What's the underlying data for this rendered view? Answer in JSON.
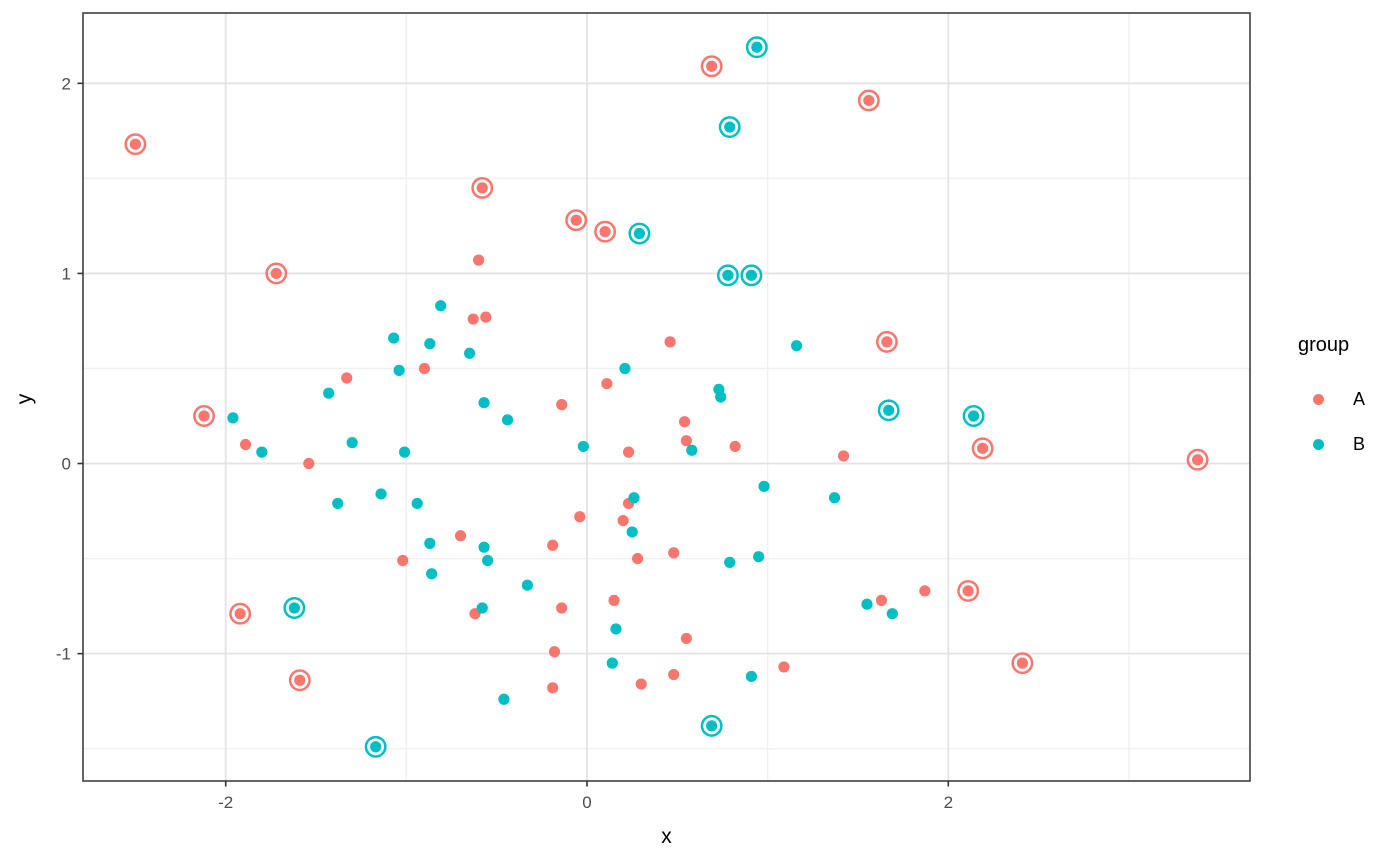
{
  "chart_data": {
    "type": "scatter",
    "title": "",
    "xlabel": "x",
    "ylabel": "y",
    "xlim": [
      -2.79,
      3.67
    ],
    "ylim": [
      -1.67,
      2.37
    ],
    "x_ticks": [
      -2,
      0,
      2
    ],
    "y_ticks": [
      -1,
      0,
      1,
      2
    ],
    "x_minor_gridlines": [
      -1,
      1,
      3
    ],
    "y_minor_gridlines": [
      -1.5,
      -0.5,
      0.5,
      1.5
    ],
    "grid": true,
    "panel_border": true,
    "note": "points with ring:true are drawn with an open circle outline around the dot",
    "legend": {
      "title": "group",
      "position": "right",
      "entries": [
        {
          "label": "A",
          "color": "#F8766D"
        },
        {
          "label": "B",
          "color": "#00BFC4"
        }
      ]
    },
    "series": [
      {
        "name": "A",
        "color": "#F8766D",
        "points": [
          {
            "x": -2.5,
            "y": 1.68,
            "ring": true
          },
          {
            "x": -1.72,
            "y": 1.0,
            "ring": true
          },
          {
            "x": 0.69,
            "y": 2.09,
            "ring": true
          },
          {
            "x": 1.56,
            "y": 1.91,
            "ring": true
          },
          {
            "x": -0.58,
            "y": 1.45,
            "ring": true
          },
          {
            "x": -0.06,
            "y": 1.28,
            "ring": true
          },
          {
            "x": 0.1,
            "y": 1.22,
            "ring": true
          },
          {
            "x": -2.12,
            "y": 0.25,
            "ring": true
          },
          {
            "x": 1.66,
            "y": 0.64,
            "ring": true
          },
          {
            "x": 2.19,
            "y": 0.08,
            "ring": true
          },
          {
            "x": 3.38,
            "y": 0.02,
            "ring": true
          },
          {
            "x": -1.92,
            "y": -0.79,
            "ring": true
          },
          {
            "x": -1.59,
            "y": -1.14,
            "ring": true
          },
          {
            "x": 2.11,
            "y": -0.67,
            "ring": true
          },
          {
            "x": 2.41,
            "y": -1.05,
            "ring": true
          },
          {
            "x": -0.6,
            "y": 1.07,
            "ring": false
          },
          {
            "x": -0.63,
            "y": 0.76,
            "ring": false
          },
          {
            "x": -0.56,
            "y": 0.77,
            "ring": false
          },
          {
            "x": 0.46,
            "y": 0.64,
            "ring": false
          },
          {
            "x": -0.9,
            "y": 0.5,
            "ring": false
          },
          {
            "x": -1.33,
            "y": 0.45,
            "ring": false
          },
          {
            "x": 0.11,
            "y": 0.42,
            "ring": false
          },
          {
            "x": -0.14,
            "y": 0.31,
            "ring": false
          },
          {
            "x": -1.89,
            "y": 0.1,
            "ring": false
          },
          {
            "x": 0.54,
            "y": 0.22,
            "ring": false
          },
          {
            "x": 0.55,
            "y": 0.12,
            "ring": false
          },
          {
            "x": 0.82,
            "y": 0.09,
            "ring": false
          },
          {
            "x": 1.42,
            "y": 0.04,
            "ring": false
          },
          {
            "x": -1.54,
            "y": 0.0,
            "ring": false
          },
          {
            "x": 0.23,
            "y": 0.06,
            "ring": false
          },
          {
            "x": -0.04,
            "y": -0.28,
            "ring": false
          },
          {
            "x": 0.2,
            "y": -0.3,
            "ring": false
          },
          {
            "x": 0.23,
            "y": -0.21,
            "ring": false
          },
          {
            "x": -0.19,
            "y": -0.43,
            "ring": false
          },
          {
            "x": 0.28,
            "y": -0.5,
            "ring": false
          },
          {
            "x": 0.48,
            "y": -0.47,
            "ring": false
          },
          {
            "x": -0.7,
            "y": -0.38,
            "ring": false
          },
          {
            "x": -1.02,
            "y": -0.51,
            "ring": false
          },
          {
            "x": 0.15,
            "y": -0.72,
            "ring": false
          },
          {
            "x": -0.14,
            "y": -0.76,
            "ring": false
          },
          {
            "x": -0.62,
            "y": -0.79,
            "ring": false
          },
          {
            "x": -0.18,
            "y": -0.99,
            "ring": false
          },
          {
            "x": 0.55,
            "y": -0.92,
            "ring": false
          },
          {
            "x": 0.3,
            "y": -1.16,
            "ring": false
          },
          {
            "x": 0.48,
            "y": -1.11,
            "ring": false
          },
          {
            "x": -0.19,
            "y": -1.18,
            "ring": false
          },
          {
            "x": 1.09,
            "y": -1.07,
            "ring": false
          },
          {
            "x": 1.63,
            "y": -0.72,
            "ring": false
          },
          {
            "x": 1.87,
            "y": -0.67,
            "ring": false
          }
        ]
      },
      {
        "name": "B",
        "color": "#00BFC4",
        "points": [
          {
            "x": 0.94,
            "y": 2.19,
            "ring": true
          },
          {
            "x": 0.79,
            "y": 1.77,
            "ring": true
          },
          {
            "x": 0.29,
            "y": 1.21,
            "ring": true
          },
          {
            "x": 0.78,
            "y": 0.99,
            "ring": true
          },
          {
            "x": 0.91,
            "y": 0.99,
            "ring": true
          },
          {
            "x": 1.67,
            "y": 0.28,
            "ring": true
          },
          {
            "x": 2.14,
            "y": 0.25,
            "ring": true
          },
          {
            "x": -1.62,
            "y": -0.76,
            "ring": true
          },
          {
            "x": -1.17,
            "y": -1.49,
            "ring": true
          },
          {
            "x": 0.69,
            "y": -1.38,
            "ring": true
          },
          {
            "x": -1.96,
            "y": 0.24,
            "ring": false
          },
          {
            "x": -1.8,
            "y": 0.06,
            "ring": false
          },
          {
            "x": -1.3,
            "y": 0.11,
            "ring": false
          },
          {
            "x": -1.01,
            "y": 0.06,
            "ring": false
          },
          {
            "x": -0.81,
            "y": 0.83,
            "ring": false
          },
          {
            "x": -1.07,
            "y": 0.66,
            "ring": false
          },
          {
            "x": -0.87,
            "y": 0.63,
            "ring": false
          },
          {
            "x": -0.65,
            "y": 0.58,
            "ring": false
          },
          {
            "x": -1.04,
            "y": 0.49,
            "ring": false
          },
          {
            "x": -1.43,
            "y": 0.37,
            "ring": false
          },
          {
            "x": -1.38,
            "y": -0.21,
            "ring": false
          },
          {
            "x": -1.14,
            "y": -0.16,
            "ring": false
          },
          {
            "x": -0.94,
            "y": -0.21,
            "ring": false
          },
          {
            "x": -0.87,
            "y": -0.42,
            "ring": false
          },
          {
            "x": -0.86,
            "y": -0.58,
            "ring": false
          },
          {
            "x": -0.57,
            "y": -0.44,
            "ring": false
          },
          {
            "x": -0.55,
            "y": -0.51,
            "ring": false
          },
          {
            "x": -0.44,
            "y": 0.23,
            "ring": false
          },
          {
            "x": -0.57,
            "y": 0.32,
            "ring": false
          },
          {
            "x": -0.02,
            "y": 0.09,
            "ring": false
          },
          {
            "x": 0.21,
            "y": 0.5,
            "ring": false
          },
          {
            "x": 0.73,
            "y": 0.39,
            "ring": false
          },
          {
            "x": 0.74,
            "y": 0.35,
            "ring": false
          },
          {
            "x": 0.58,
            "y": 0.07,
            "ring": false
          },
          {
            "x": 1.16,
            "y": 0.62,
            "ring": false
          },
          {
            "x": 0.26,
            "y": -0.18,
            "ring": false
          },
          {
            "x": 0.16,
            "y": -0.87,
            "ring": false
          },
          {
            "x": 0.14,
            "y": -1.05,
            "ring": false
          },
          {
            "x": 0.25,
            "y": -0.36,
            "ring": false
          },
          {
            "x": -0.33,
            "y": -0.64,
            "ring": false
          },
          {
            "x": -0.46,
            "y": -1.24,
            "ring": false
          },
          {
            "x": 0.79,
            "y": -0.52,
            "ring": false
          },
          {
            "x": 0.95,
            "y": -0.49,
            "ring": false
          },
          {
            "x": 0.98,
            "y": -0.12,
            "ring": false
          },
          {
            "x": 1.37,
            "y": -0.18,
            "ring": false
          },
          {
            "x": 1.55,
            "y": -0.74,
            "ring": false
          },
          {
            "x": 1.69,
            "y": -0.79,
            "ring": false
          },
          {
            "x": 0.91,
            "y": -1.12,
            "ring": false
          },
          {
            "x": -0.58,
            "y": -0.76,
            "ring": false
          }
        ]
      }
    ]
  },
  "style": {
    "background": "#FFFFFF",
    "panel_background": "#FFFFFF",
    "grid_major_color": "#E3E3E3",
    "grid_minor_color": "#F0F0F0",
    "panel_border_color": "#404040",
    "tick_color": "#333333",
    "tick_label_color": "#4D4D4D",
    "axis_title_color": "#000000"
  }
}
